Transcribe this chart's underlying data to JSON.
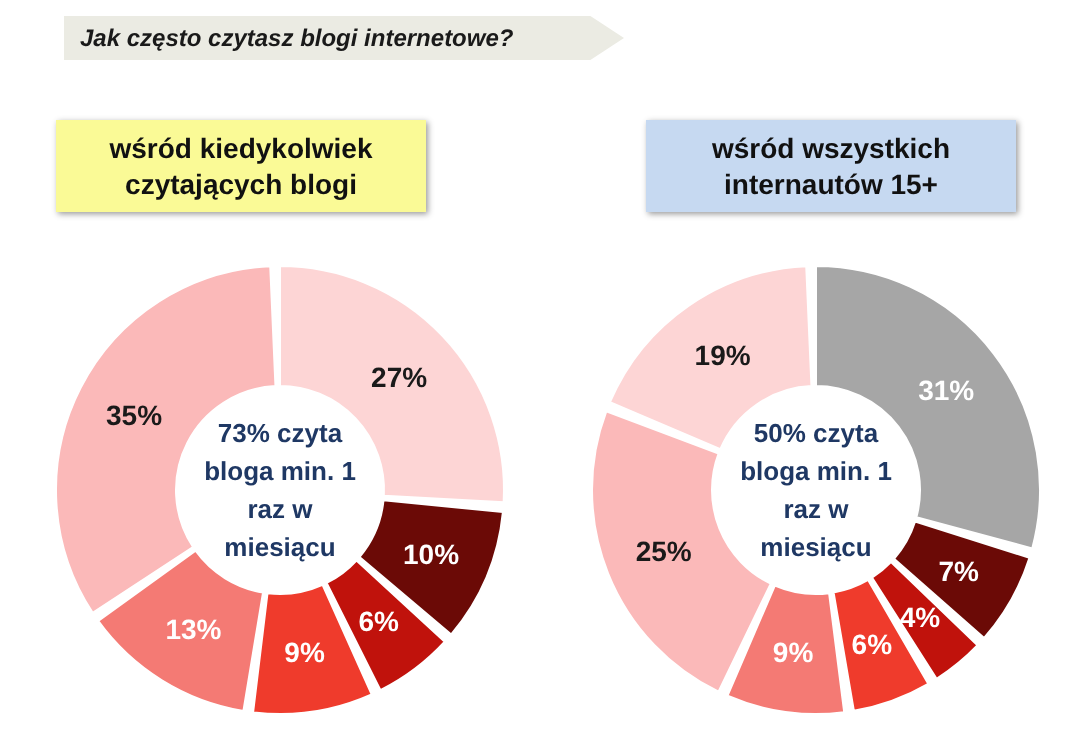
{
  "chart_data": [
    {
      "type": "donut",
      "title": "Jak często czytasz blogi internetowe?",
      "subtitle": "wśród kiedykolwiek czytających blogi",
      "categories": [
        null,
        null,
        null,
        null,
        null,
        null
      ],
      "values": [
        27,
        10,
        6,
        9,
        13,
        35
      ],
      "colors": [
        "#fdd5d5",
        "#6b0a06",
        "#c0120c",
        "#ef3b2c",
        "#f47a74",
        "#fbb9b9"
      ],
      "value_labels": [
        "27%",
        "10%",
        "6%",
        "9%",
        "13%",
        "35%"
      ],
      "annotations": [
        "73% czyta bloga min. 1 raz w miesiącu"
      ]
    },
    {
      "type": "donut",
      "subtitle": "wśród wszystkich internautów 15+",
      "categories": [
        null,
        null,
        null,
        null,
        null,
        null,
        null
      ],
      "values": [
        31,
        7,
        4,
        6,
        9,
        25,
        19
      ],
      "colors": [
        "#a6a6a6",
        "#6b0a06",
        "#c0120c",
        "#ef3b2c",
        "#f47a74",
        "#fbb9b9",
        "#fdd5d5"
      ],
      "value_labels": [
        "31%",
        "7%",
        "4%",
        "6%",
        "9%",
        "25%",
        "19%"
      ],
      "annotations": [
        "50% czyta bloga min. 1 raz w miesiącu"
      ]
    }
  ]
}
